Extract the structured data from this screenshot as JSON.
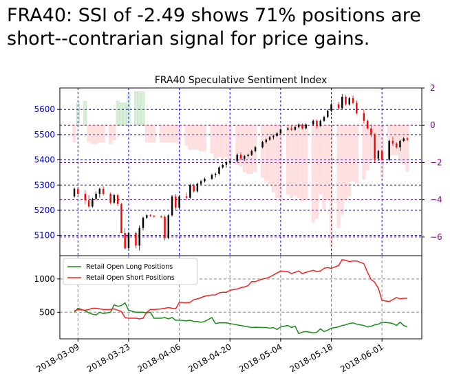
{
  "headline": {
    "line1": "FRA40: SSI of -2.49 shows 71% positions are",
    "line2": "short--contrarian signal for price gains."
  },
  "colors": {
    "up_candle": "#000000",
    "down_candle": "#ff0000",
    "price_axis": "#0000cc",
    "ssi_axis": "#800080",
    "ssi_positive": "#2ca02c",
    "ssi_negative": "#ff9999",
    "long_line": "#1a8a1a",
    "short_line": "#ee2222"
  },
  "chart_data": [
    {
      "type": "candlestick",
      "title": "FRA40 Speculative Sentiment Index",
      "ylim": [
        5020,
        5685
      ],
      "yticks": [
        "5100",
        "5200",
        "5300",
        "5400",
        "5500",
        "5600"
      ],
      "y2lim": [
        -7,
        2
      ],
      "y2ticks": [
        "2",
        "0",
        "−2",
        "−4",
        "−6"
      ],
      "xticks": [
        "2018-03-09",
        "2018-03-23",
        "2018-04-06",
        "2018-04-20",
        "2018-05-04",
        "2018-05-18",
        "2018-06-01"
      ],
      "xlim": [
        "2018-03-04",
        "2018-06-12"
      ],
      "grid": "dotted",
      "dates": [
        "2018-03-08",
        "2018-03-09",
        "2018-03-11",
        "2018-03-12",
        "2018-03-13",
        "2018-03-14",
        "2018-03-15",
        "2018-03-16",
        "2018-03-18",
        "2018-03-19",
        "2018-03-20",
        "2018-03-21",
        "2018-03-22",
        "2018-03-23",
        "2018-03-25",
        "2018-03-26",
        "2018-03-27",
        "2018-03-28",
        "2018-03-29",
        "2018-03-30",
        "2018-04-01",
        "2018-04-02",
        "2018-04-03",
        "2018-04-04",
        "2018-04-05",
        "2018-04-06",
        "2018-04-08",
        "2018-04-09",
        "2018-04-10",
        "2018-04-11",
        "2018-04-12",
        "2018-04-13",
        "2018-04-15",
        "2018-04-16",
        "2018-04-17",
        "2018-04-18",
        "2018-04-19",
        "2018-04-20",
        "2018-04-22",
        "2018-04-23",
        "2018-04-24",
        "2018-04-25",
        "2018-04-26",
        "2018-04-27",
        "2018-04-29",
        "2018-04-30",
        "2018-05-01",
        "2018-05-02",
        "2018-05-03",
        "2018-05-04",
        "2018-05-06",
        "2018-05-07",
        "2018-05-08",
        "2018-05-09",
        "2018-05-10",
        "2018-05-11",
        "2018-05-13",
        "2018-05-14",
        "2018-05-15",
        "2018-05-16",
        "2018-05-17",
        "2018-05-18",
        "2018-05-20",
        "2018-05-21",
        "2018-05-22",
        "2018-05-23",
        "2018-05-24",
        "2018-05-25",
        "2018-05-27",
        "2018-05-28",
        "2018-05-29",
        "2018-05-30",
        "2018-05-31",
        "2018-06-01",
        "2018-06-03",
        "2018-06-04",
        "2018-06-05",
        "2018-06-06",
        "2018-06-07",
        "2018-06-08"
      ],
      "ohlc": [
        [
          5255,
          5290,
          5250,
          5285
        ],
        [
          5285,
          5290,
          5260,
          5265
        ],
        [
          5265,
          5280,
          5225,
          5240
        ],
        [
          5240,
          5260,
          5210,
          5215
        ],
        [
          5215,
          5250,
          5210,
          5245
        ],
        [
          5245,
          5275,
          5240,
          5265
        ],
        [
          5265,
          5290,
          5250,
          5285
        ],
        [
          5285,
          5295,
          5260,
          5265
        ],
        [
          5265,
          5270,
          5225,
          5230
        ],
        [
          5230,
          5265,
          5225,
          5260
        ],
        [
          5260,
          5265,
          5215,
          5225
        ],
        [
          5225,
          5230,
          5110,
          5110
        ],
        [
          5110,
          5130,
          5045,
          5050
        ],
        [
          5050,
          5115,
          5040,
          5110
        ],
        [
          5110,
          5115,
          5050,
          5060
        ],
        [
          5060,
          5140,
          5040,
          5130
        ],
        [
          5130,
          5175,
          5120,
          5170
        ],
        [
          5170,
          5185,
          5165,
          5180
        ],
        [
          5180,
          5185,
          5175,
          5178
        ],
        [
          5178,
          5180,
          5170,
          5176
        ],
        [
          5176,
          5180,
          5170,
          5175
        ],
        [
          5175,
          5180,
          5080,
          5090
        ],
        [
          5090,
          5185,
          5085,
          5180
        ],
        [
          5180,
          5260,
          5175,
          5255
        ],
        [
          5255,
          5265,
          5200,
          5210
        ],
        [
          5210,
          5260,
          5205,
          5255
        ],
        [
          5255,
          5270,
          5240,
          5250
        ],
        [
          5250,
          5305,
          5245,
          5300
        ],
        [
          5300,
          5305,
          5270,
          5275
        ],
        [
          5275,
          5310,
          5270,
          5305
        ],
        [
          5305,
          5320,
          5300,
          5315
        ],
        [
          5315,
          5330,
          5310,
          5325
        ],
        [
          5325,
          5345,
          5320,
          5340
        ],
        [
          5340,
          5350,
          5330,
          5345
        ],
        [
          5345,
          5375,
          5340,
          5370
        ],
        [
          5370,
          5385,
          5365,
          5380
        ],
        [
          5380,
          5395,
          5370,
          5390
        ],
        [
          5390,
          5400,
          5380,
          5395
        ],
        [
          5395,
          5425,
          5390,
          5420
        ],
        [
          5420,
          5430,
          5400,
          5405
        ],
        [
          5405,
          5420,
          5395,
          5415
        ],
        [
          5415,
          5425,
          5410,
          5420
        ],
        [
          5420,
          5440,
          5415,
          5435
        ],
        [
          5435,
          5455,
          5430,
          5450
        ],
        [
          5450,
          5475,
          5445,
          5470
        ],
        [
          5470,
          5485,
          5465,
          5480
        ],
        [
          5480,
          5495,
          5475,
          5490
        ],
        [
          5490,
          5500,
          5480,
          5495
        ],
        [
          5495,
          5510,
          5490,
          5505
        ],
        [
          5505,
          5525,
          5500,
          5520
        ],
        [
          5520,
          5530,
          5515,
          5525
        ],
        [
          5525,
          5535,
          5515,
          5520
        ],
        [
          5520,
          5535,
          5515,
          5530
        ],
        [
          5530,
          5545,
          5525,
          5540
        ],
        [
          5540,
          5545,
          5520,
          5525
        ],
        [
          5525,
          5545,
          5520,
          5540
        ],
        [
          5540,
          5560,
          5535,
          5555
        ],
        [
          5555,
          5560,
          5525,
          5535
        ],
        [
          5535,
          5560,
          5530,
          5555
        ],
        [
          5555,
          5575,
          5550,
          5570
        ],
        [
          5570,
          5600,
          5565,
          5595
        ],
        [
          5595,
          5625,
          5590,
          5620
        ],
        [
          5620,
          5630,
          5600,
          5605
        ],
        [
          5605,
          5660,
          5600,
          5650
        ],
        [
          5650,
          5655,
          5615,
          5620
        ],
        [
          5620,
          5650,
          5615,
          5645
        ],
        [
          5645,
          5655,
          5620,
          5625
        ],
        [
          5625,
          5635,
          5580,
          5585
        ],
        [
          5585,
          5600,
          5545,
          5555
        ],
        [
          5555,
          5560,
          5520,
          5525
        ],
        [
          5525,
          5540,
          5490,
          5500
        ],
        [
          5500,
          5505,
          5390,
          5405
        ],
        [
          5405,
          5440,
          5395,
          5435
        ],
        [
          5435,
          5440,
          5395,
          5400
        ],
        [
          5400,
          5480,
          5395,
          5475
        ],
        [
          5475,
          5490,
          5455,
          5465
        ],
        [
          5465,
          5470,
          5445,
          5450
        ],
        [
          5450,
          5480,
          5435,
          5475
        ],
        [
          5475,
          5490,
          5470,
          5485
        ],
        [
          5485,
          5490,
          5475,
          5480
        ]
      ],
      "ssi_series": [
        {
          "name": "SSI",
          "values": [
            -0.9,
            1.2,
            1.3,
            -0.9,
            -1.0,
            -1.0,
            -0.9,
            -0.9,
            -1.0,
            -0.8,
            1.3,
            1.2,
            1.2,
            1.7,
            1.8,
            1.8,
            1.8,
            -0.9,
            -0.9,
            -0.9,
            -0.9,
            -0.9,
            -0.9,
            -0.9,
            -0.9,
            -1.0,
            -1.1,
            -1.3,
            -1.3,
            -1.3,
            -1.4,
            -1.4,
            -1.5,
            -1.8,
            -1.7,
            -1.8,
            -1.7,
            -2.0,
            -2.1,
            -2.2,
            -2.5,
            -2.6,
            -2.6,
            -2.5,
            -2.8,
            -3.0,
            -3.2,
            -3.6,
            -3.9,
            -4.0,
            -3.7,
            -3.9,
            -3.8,
            -3.9,
            -4.1,
            -4.0,
            -5.2,
            -5.0,
            -3.7,
            -4.5,
            -4.0,
            -6.5,
            -5.5,
            -4.8,
            -4.0,
            -3.8,
            -3.0,
            -3.1,
            -2.9,
            -2.4,
            -1.9,
            -1.8,
            -1.5,
            -2.8,
            -1.7,
            -1.6,
            -1.6,
            -1.9,
            -2.1,
            -2.49
          ]
        }
      ]
    },
    {
      "type": "line",
      "ylim": [
        100,
        1350
      ],
      "yticks": [
        "500",
        "1000"
      ],
      "xticks": [
        "2018-03-09",
        "2018-03-23",
        "2018-04-06",
        "2018-04-20",
        "2018-05-04",
        "2018-05-18",
        "2018-06-01"
      ],
      "legend": "top-left",
      "series": [
        {
          "name": "Retail Open Long Positions",
          "values": [
            500,
            560,
            520,
            490,
            470,
            460,
            500,
            480,
            500,
            610,
            590,
            600,
            640,
            530,
            500,
            500,
            500,
            490,
            500,
            410,
            410,
            420,
            400,
            420,
            380,
            380,
            370,
            380,
            360,
            360,
            350,
            360,
            420,
            330,
            340,
            340,
            340,
            330,
            310,
            300,
            290,
            280,
            270,
            275,
            270,
            270,
            260,
            270,
            240,
            280,
            300,
            270,
            290,
            180,
            200,
            210,
            190,
            200,
            250,
            210,
            230,
            260,
            280,
            300,
            310,
            330,
            340,
            320,
            300,
            280,
            290,
            310,
            320,
            350,
            340,
            330,
            300,
            350,
            300,
            280
          ]
        },
        {
          "name": "Retail Open Short Positions",
          "values": [
            520,
            540,
            530,
            540,
            560,
            560,
            550,
            540,
            540,
            550,
            530,
            510,
            420,
            410,
            410,
            400,
            410,
            500,
            540,
            540,
            550,
            560,
            570,
            560,
            550,
            650,
            640,
            650,
            690,
            700,
            720,
            740,
            760,
            760,
            790,
            800,
            800,
            830,
            850,
            870,
            880,
            900,
            960,
            960,
            1000,
            1010,
            1030,
            1060,
            1090,
            1120,
            1110,
            1080,
            1100,
            1120,
            1080,
            1100,
            1130,
            1110,
            1120,
            1160,
            1170,
            1160,
            1200,
            1290,
            1280,
            1260,
            1270,
            1270,
            1230,
            1100,
            990,
            950,
            860,
            680,
            660,
            690,
            720,
            700,
            710,
            710
          ]
        }
      ]
    }
  ]
}
